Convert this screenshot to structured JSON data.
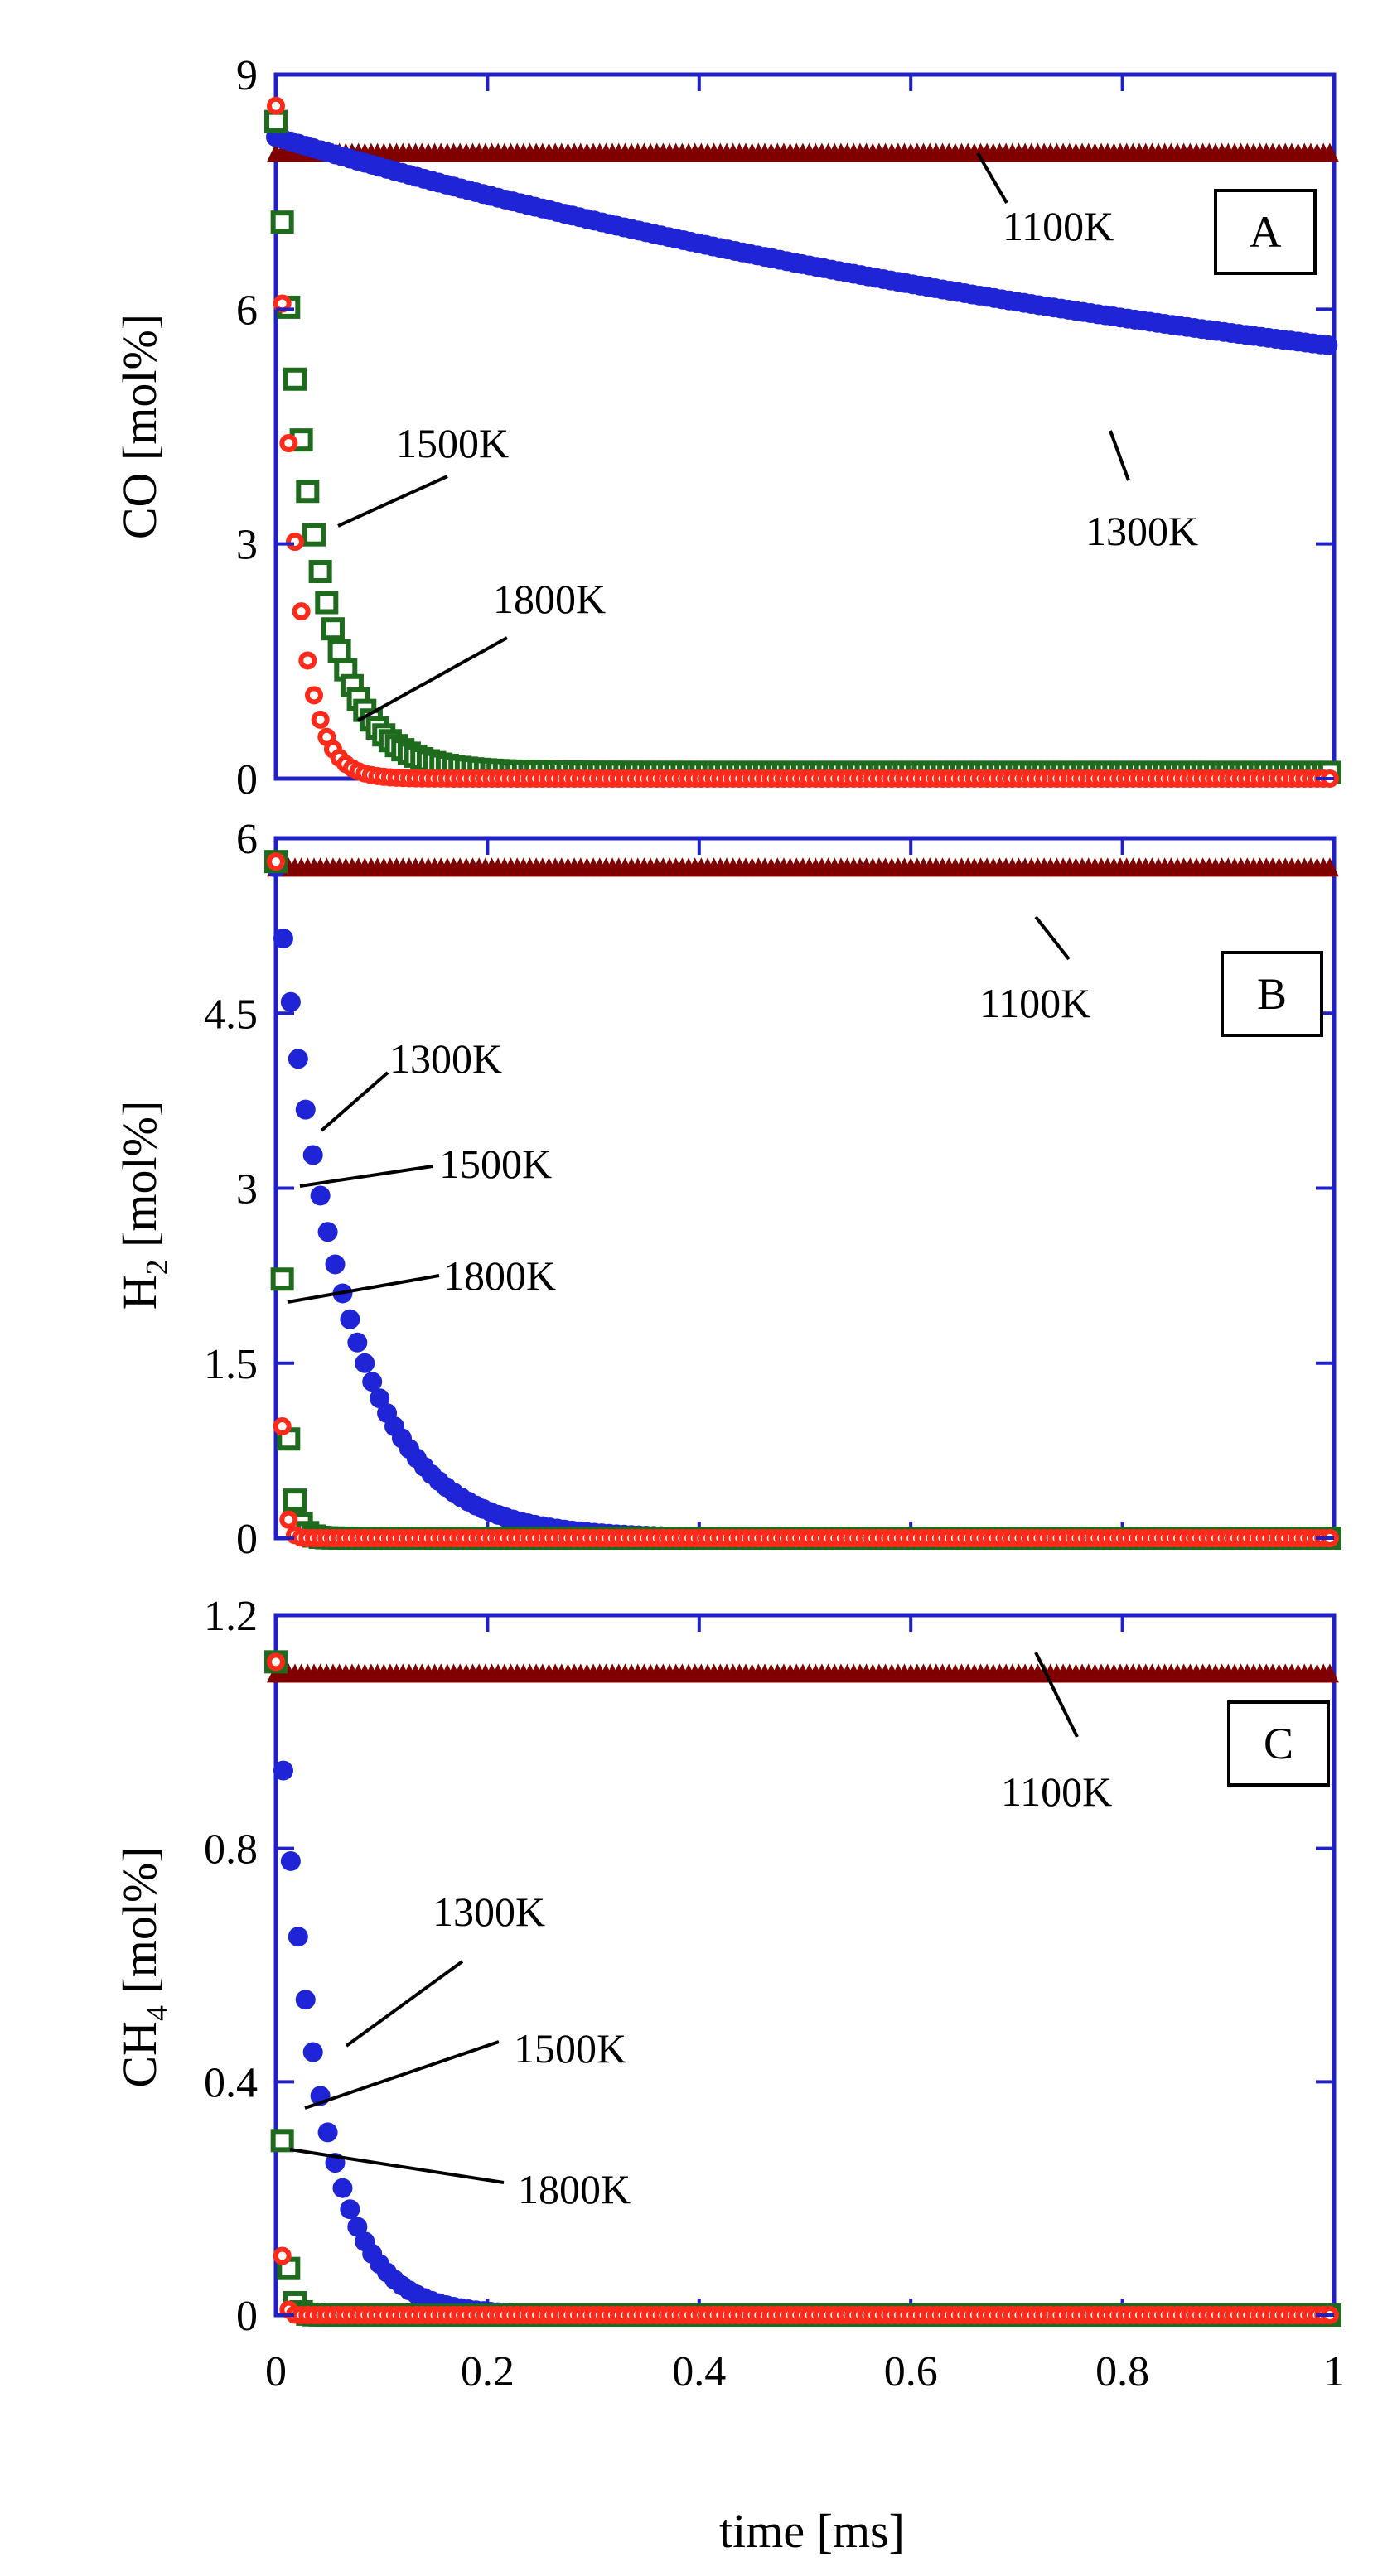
{
  "chart_data": [
    {
      "type": "scatter",
      "panel_label": "A",
      "ylabel": {
        "main": "CO [mol%]"
      },
      "ylim": [
        0,
        9
      ],
      "yticks": [
        "0",
        "3",
        "6",
        "9"
      ],
      "ytick_values": [
        0,
        3,
        6,
        9
      ],
      "xlim": [
        0,
        1
      ],
      "series": [
        {
          "name": "1100K",
          "label": "1100K",
          "color": "#800000",
          "marker": "triangle",
          "y0": 8.0,
          "k": 0.0,
          "tail": 8.0,
          "dt": 0.006
        },
        {
          "name": "1300K",
          "label": "1300K",
          "color": "#1f24d6",
          "marker": "circle",
          "y0": 8.2,
          "k": 0.9,
          "tail": 3.7,
          "dt": 0.007
        },
        {
          "name": "1500K",
          "label": "1500K",
          "color": "#1e6b1e",
          "marker": "square",
          "y0": 8.4,
          "k": 28,
          "tail": 0.08,
          "dt": 0.006
        },
        {
          "name": "1800K",
          "label": "1800K",
          "color": "#ff2a1a",
          "marker": "ring",
          "y0": 8.6,
          "k": 58,
          "tail": 0.0,
          "dt": 0.006
        }
      ],
      "annotations": [
        "1100K",
        "1300K",
        "1500K",
        "1800K"
      ]
    },
    {
      "type": "scatter",
      "panel_label": "B",
      "ylabel": {
        "main": "H",
        "sub": "2",
        "rest": " [mol%]"
      },
      "ylim": [
        0,
        6
      ],
      "yticks": [
        "0",
        "1.5",
        "3",
        "4.5",
        "6"
      ],
      "ytick_values": [
        0,
        1.5,
        3,
        4.5,
        6
      ],
      "xlim": [
        0,
        1
      ],
      "series": [
        {
          "name": "1100K",
          "label": "1100K",
          "color": "#800000",
          "marker": "triangle",
          "y0": 5.75,
          "k": 0.0,
          "tail": 5.75,
          "dt": 0.006
        },
        {
          "name": "1300K",
          "label": "1300K",
          "color": "#1f24d6",
          "marker": "circle",
          "y0": 5.75,
          "k": 16,
          "tail": 0.0,
          "dt": 0.007
        },
        {
          "name": "1500K",
          "label": "1500K",
          "color": "#1e6b1e",
          "marker": "square",
          "y0": 5.8,
          "k": 160,
          "tail": 0.0,
          "dt": 0.006
        },
        {
          "name": "1800K",
          "label": "1800K",
          "color": "#ff2a1a",
          "marker": "ring",
          "y0": 5.8,
          "k": 300,
          "tail": 0.0,
          "dt": 0.006
        }
      ],
      "annotations": [
        "1100K",
        "1300K",
        "1500K",
        "1800K"
      ]
    },
    {
      "type": "scatter",
      "panel_label": "C",
      "ylabel": {
        "main": "CH",
        "sub": "4",
        "rest": " [mol%]"
      },
      "ylim": [
        0,
        1.2
      ],
      "yticks": [
        "0",
        "0.4",
        "0.8",
        "1.2"
      ],
      "ytick_values": [
        0,
        0.4,
        0.8,
        1.2
      ],
      "xlim": [
        0,
        1
      ],
      "xlabel": "time [ms]",
      "xticks": [
        "0",
        "0.2",
        "0.4",
        "0.6",
        "0.8",
        "1"
      ],
      "xtick_values": [
        0,
        0.2,
        0.4,
        0.6,
        0.8,
        1
      ],
      "series": [
        {
          "name": "1100K",
          "label": "1100K",
          "color": "#800000",
          "marker": "triangle",
          "y0": 1.1,
          "k": 0.0,
          "tail": 1.1,
          "dt": 0.006
        },
        {
          "name": "1300K",
          "label": "1300K",
          "color": "#1f24d6",
          "marker": "circle",
          "y0": 1.12,
          "k": 26,
          "tail": 0.0,
          "dt": 0.007
        },
        {
          "name": "1500K",
          "label": "1500K",
          "color": "#1e6b1e",
          "marker": "square",
          "y0": 1.12,
          "k": 220,
          "tail": 0.0,
          "dt": 0.006
        },
        {
          "name": "1800K",
          "label": "1800K",
          "color": "#ff2a1a",
          "marker": "ring",
          "y0": 1.12,
          "k": 400,
          "tail": 0.0,
          "dt": 0.006
        }
      ],
      "annotations": [
        "1100K",
        "1300K",
        "1500K",
        "1800K"
      ]
    }
  ]
}
